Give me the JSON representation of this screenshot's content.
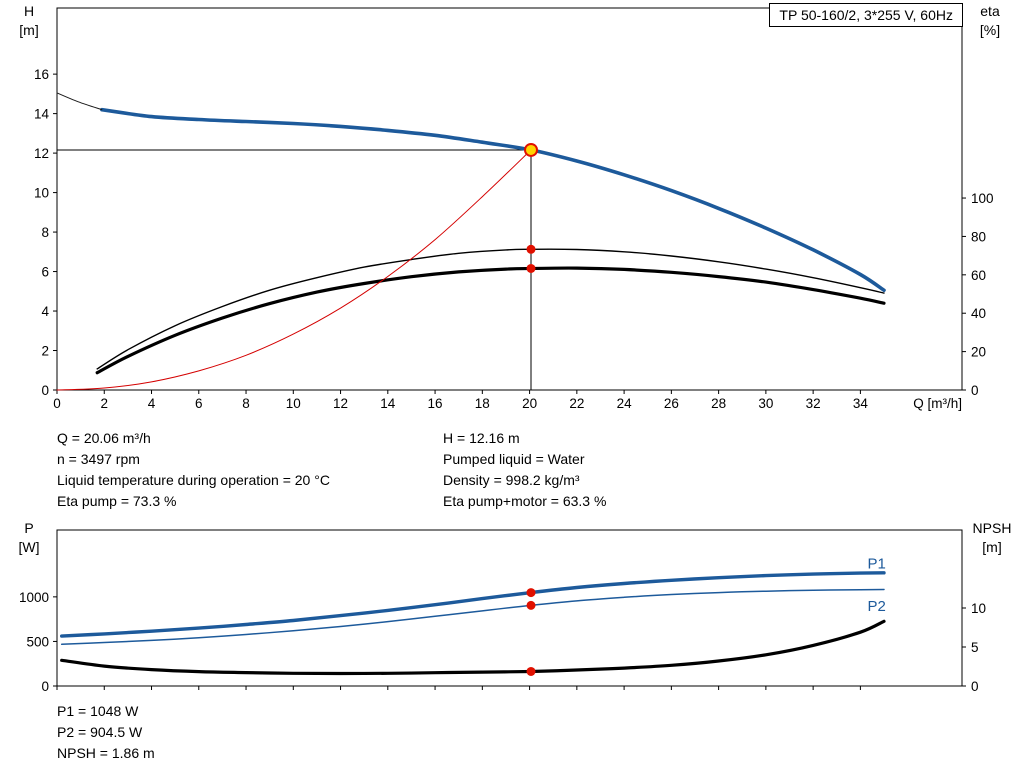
{
  "title_box": {
    "label": "TP 50-160/2, 3*255 V, 60Hz"
  },
  "operating_point": {
    "left": [
      "Q = 20.06 m³/h",
      "n = 3497 rpm",
      "Liquid temperature during operation = 20 °C",
      "Eta pump = 73.3 %"
    ],
    "right": [
      "H = 12.16 m",
      "Pumped liquid = Water",
      "Density = 998.2 kg/m³",
      "Eta pump+motor = 63.3 %"
    ]
  },
  "power_info": [
    "P1 = 1048 W",
    "P2 = 904.5 W",
    "NPSH = 1.86 m"
  ],
  "chart_data": [
    {
      "id": "hq",
      "type": "line",
      "x_axis": {
        "label": "Q [m³/h]",
        "range": [
          0,
          38.3
        ],
        "ticks": [
          0,
          2,
          4,
          6,
          8,
          10,
          12,
          14,
          16,
          18,
          20,
          22,
          24,
          26,
          28,
          30,
          32,
          34
        ]
      },
      "left_axis": {
        "name": "H",
        "unit": "[m]",
        "range": [
          0,
          19.35
        ],
        "ticks": [
          0,
          2,
          4,
          6,
          8,
          10,
          12,
          14,
          16
        ]
      },
      "right_axis": {
        "name": "eta",
        "unit": "[%]",
        "range": [
          0,
          199
        ],
        "ticks": [
          0,
          20,
          40,
          60,
          80,
          100
        ]
      },
      "crosshair": {
        "x": 20.06,
        "y": 12.16
      },
      "series": [
        {
          "name": "pump-curve",
          "axis": "left",
          "color": "#1d5a9b",
          "width": 3.6,
          "x": [
            1.9,
            4,
            6,
            8,
            10,
            12,
            14,
            16,
            18,
            20.06,
            22,
            24,
            26,
            28,
            30,
            32,
            34,
            35
          ],
          "y": [
            14.2,
            13.85,
            13.7,
            13.6,
            13.5,
            13.35,
            13.15,
            12.9,
            12.55,
            12.16,
            11.6,
            10.9,
            10.1,
            9.2,
            8.2,
            7.1,
            5.85,
            5.05
          ]
        },
        {
          "name": "pump-curve-rated",
          "axis": "left",
          "color": "#1a1a1a",
          "width": 1,
          "x": [
            0,
            0.9,
            1.9
          ],
          "y": [
            15.05,
            14.6,
            14.2
          ]
        },
        {
          "name": "eta-pump",
          "axis": "right",
          "color": "#000000",
          "width": 1.4,
          "x": [
            1.7,
            3,
            5,
            7,
            9,
            11,
            13,
            15,
            17,
            19,
            20.06,
            22,
            24,
            26,
            28,
            30,
            32,
            34,
            35
          ],
          "y": [
            11,
            21,
            33.5,
            43.5,
            52,
            58.5,
            64,
            68,
            71.2,
            73,
            73.3,
            73.2,
            72,
            69.8,
            66.8,
            63,
            58.5,
            53.3,
            50.5
          ]
        },
        {
          "name": "eta-pump-motor",
          "axis": "right",
          "color": "#000000",
          "width": 3.2,
          "x": [
            1.7,
            3,
            5,
            7,
            9,
            11,
            13,
            15,
            17,
            19,
            20.06,
            22,
            24,
            26,
            28,
            30,
            32,
            34,
            35
          ],
          "y": [
            9,
            17.5,
            28.5,
            37.5,
            45,
            51,
            55.5,
            59,
            61.5,
            63,
            63.3,
            63.5,
            62.8,
            61.3,
            59.1,
            56.2,
            52.3,
            47.8,
            45.2
          ]
        },
        {
          "name": "system-curve",
          "axis": "left",
          "color": "#d40000",
          "width": 1,
          "x": [
            0,
            2,
            4,
            6,
            8,
            10,
            12,
            14,
            16,
            18,
            20.06
          ],
          "y": [
            0,
            0.1,
            0.41,
            0.97,
            1.76,
            2.83,
            4.15,
            5.75,
            7.62,
            9.79,
            12.16
          ]
        }
      ],
      "markers": [
        {
          "name": "duty-point",
          "x": 20.06,
          "y": 12.16,
          "axis": "left",
          "r": 6,
          "fill": "#ffd400",
          "stroke": "#e01000"
        },
        {
          "name": "eta-pump-dot",
          "x": 20.06,
          "y": 73.3,
          "axis": "right",
          "r": 4.5,
          "fill": "#e01000"
        },
        {
          "name": "eta-pump-motor-dot",
          "x": 20.06,
          "y": 63.3,
          "axis": "right",
          "r": 4.5,
          "fill": "#e01000"
        }
      ]
    },
    {
      "id": "power",
      "type": "line",
      "x_axis": {
        "range": [
          0,
          38.3
        ],
        "ticks": [
          0,
          2,
          4,
          6,
          8,
          10,
          12,
          14,
          16,
          18,
          20,
          22,
          24,
          26,
          28,
          30,
          32,
          34
        ],
        "show_labels": false
      },
      "left_axis": {
        "name": "P",
        "unit": "[W]",
        "range": [
          0,
          1750
        ],
        "ticks": [
          0,
          500,
          1000
        ]
      },
      "right_axis": {
        "name": "NPSH",
        "unit": "[m]",
        "range": [
          0,
          20
        ],
        "ticks": [
          0,
          5,
          10
        ]
      },
      "series": [
        {
          "name": "p1-curve",
          "axis": "left",
          "color": "#1d5a9b",
          "width": 3.4,
          "x": [
            0.2,
            2,
            4,
            6,
            8,
            10,
            12,
            14,
            16,
            18,
            20.06,
            22,
            24,
            26,
            28,
            30,
            32,
            34,
            35
          ],
          "y": [
            560,
            585,
            615,
            650,
            690,
            735,
            790,
            848,
            912,
            980,
            1048,
            1105,
            1150,
            1186,
            1215,
            1238,
            1255,
            1266,
            1270
          ]
        },
        {
          "name": "p2-curve",
          "axis": "left",
          "color": "#1d5a9b",
          "width": 1.5,
          "x": [
            0.2,
            2,
            4,
            6,
            8,
            10,
            12,
            14,
            16,
            18,
            20.06,
            22,
            24,
            26,
            28,
            30,
            32,
            34,
            35
          ],
          "y": [
            468,
            488,
            512,
            542,
            578,
            620,
            668,
            722,
            782,
            843,
            904.5,
            955,
            995,
            1026,
            1048,
            1064,
            1074,
            1080,
            1082
          ]
        },
        {
          "name": "npsh-curve",
          "axis": "right",
          "color": "#000000",
          "width": 3.2,
          "x": [
            0.2,
            2,
            4,
            6,
            8,
            10,
            12,
            14,
            16,
            18,
            20.06,
            22,
            24,
            26,
            28,
            30,
            32,
            34,
            35
          ],
          "y": [
            3.3,
            2.55,
            2.1,
            1.85,
            1.72,
            1.63,
            1.6,
            1.63,
            1.7,
            1.78,
            1.86,
            2.05,
            2.3,
            2.65,
            3.2,
            4.0,
            5.2,
            6.9,
            8.3
          ]
        }
      ],
      "markers": [
        {
          "name": "p1-dot",
          "x": 20.06,
          "y": 1048,
          "axis": "left",
          "r": 4.5,
          "fill": "#e01000"
        },
        {
          "name": "p2-dot",
          "x": 20.06,
          "y": 904.5,
          "axis": "left",
          "r": 4.5,
          "fill": "#e01000"
        },
        {
          "name": "npsh-dot",
          "x": 20.06,
          "y": 1.86,
          "axis": "right",
          "r": 4.5,
          "fill": "#e01000"
        }
      ],
      "annotations": [
        {
          "text": "P1",
          "x": 34.3,
          "y": 1320,
          "axis": "left",
          "color": "#1d5a9b"
        },
        {
          "text": "P2",
          "x": 34.3,
          "y": 840,
          "axis": "left",
          "color": "#1d5a9b"
        }
      ]
    }
  ]
}
